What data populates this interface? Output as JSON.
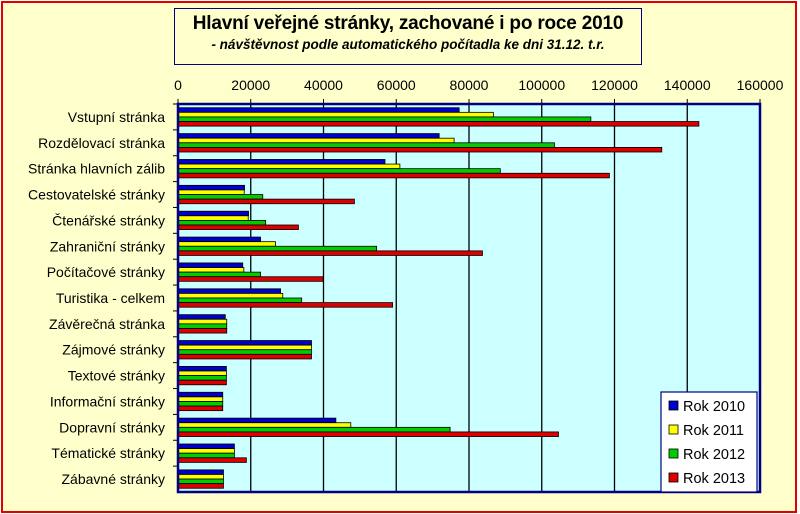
{
  "chart_data": {
    "type": "bar",
    "orientation": "horizontal",
    "title": "Hlavní veřejné stránky, zachované i po roce 2010",
    "subtitle": "- návštěvnost podle automatického počítadla ke dni 31.12. t.r.",
    "xlabel": "",
    "ylabel": "",
    "xlim": [
      0,
      160000
    ],
    "xticks": [
      "0",
      "20000",
      "40000",
      "60000",
      "80000",
      "100000",
      "120000",
      "140000",
      "160000"
    ],
    "grid": true,
    "legend_position": "bottom-right",
    "categories": [
      "Vstupní stránka",
      "Rozdělovací stránka",
      "Stránka hlavních zálib",
      "Cestovatelské stránky",
      "Čtenářské stránky",
      "Zahraniční stránky",
      "Počítačové stránky",
      "Turistika - celkem",
      "Závěrečná stránka",
      "Zájmové stránky",
      "Textové stránky",
      "Informační stránky",
      "Dopravní stránky",
      "Tématické stránky",
      "Zábavné stránky"
    ],
    "series": [
      {
        "name": "Rok 2010",
        "color": "#0000cc",
        "values": [
          77300,
          71800,
          56900,
          18300,
          19400,
          22700,
          17800,
          28200,
          13000,
          36700,
          13300,
          12300,
          43400,
          15500,
          12500
        ]
      },
      {
        "name": "Rok 2011",
        "color": "#ffff00",
        "values": [
          86700,
          75900,
          61000,
          18200,
          19300,
          26800,
          18100,
          28800,
          13400,
          36700,
          13300,
          12300,
          47500,
          15500,
          12500
        ]
      },
      {
        "name": "Rok 2012",
        "color": "#00cc00",
        "values": [
          113500,
          103500,
          88600,
          23300,
          24100,
          54600,
          22700,
          34000,
          13400,
          36700,
          13300,
          12300,
          74800,
          15500,
          12500
        ]
      },
      {
        "name": "Rok 2013",
        "color": "#dd0000",
        "values": [
          143200,
          133000,
          118600,
          48500,
          33100,
          83700,
          39900,
          59000,
          13400,
          36700,
          13300,
          12300,
          104600,
          18800,
          12500
        ]
      }
    ]
  }
}
